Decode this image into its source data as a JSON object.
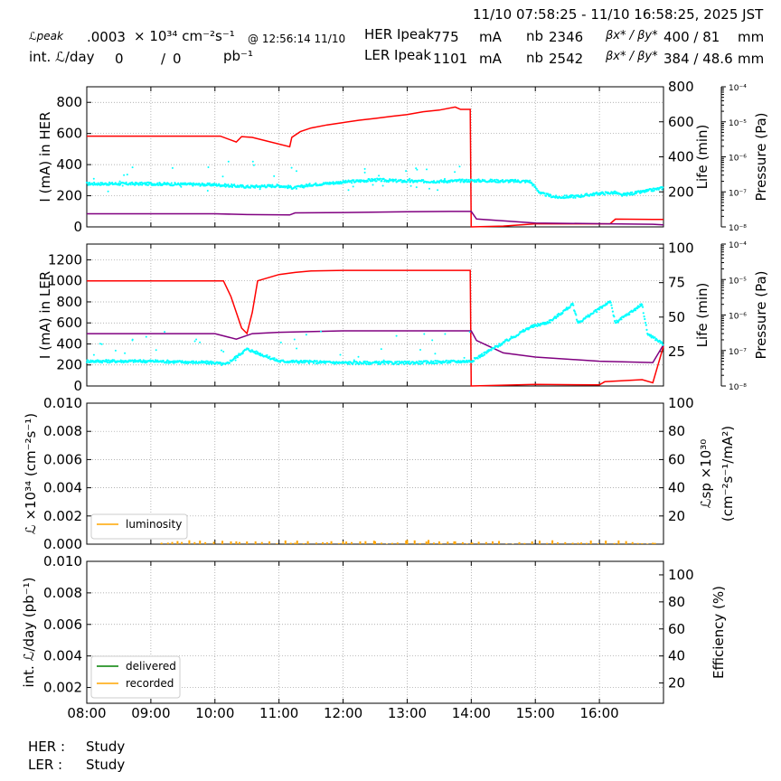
{
  "header": {
    "time_range": "11/10 07:58:25 - 11/10 16:58:25, 2025 JST",
    "lum_peak_label": "ℒpeak",
    "lum_peak_value": ".0003",
    "lum_peak_unit": "× 10³⁴ cm⁻²s⁻¹",
    "lum_peak_time": "@ 12:56:14 11/10",
    "int_lum_label": "int. ℒ/day",
    "int_lum_delivered": "0",
    "int_lum_sep": "/",
    "int_lum_recorded": "0",
    "int_lum_unit": "pb⁻¹",
    "her_peak_label": "HER Ipeak",
    "her_peak_value": "775",
    "her_peak_unit": "mA",
    "her_nb_label": "nb",
    "her_nb_value": "2346",
    "her_beta_label": "βx* / βy*",
    "her_beta_value": "400  / 81",
    "her_beta_unit": "mm",
    "ler_peak_label": "LER Ipeak",
    "ler_peak_value": "1101",
    "ler_peak_unit": "mA",
    "ler_nb_label": "nb",
    "ler_nb_value": "2542",
    "ler_beta_label": "βx* / βy*",
    "ler_beta_value": "384  / 48.6",
    "ler_beta_unit": "mm"
  },
  "footer": {
    "her_label": "HER :",
    "her_mode": "Study",
    "ler_label": "LER :",
    "ler_mode": "Study"
  },
  "colors": {
    "current": "#ff0000",
    "life": "#800080",
    "pressure": "#00ffff",
    "luminosity": "#ffa500",
    "delivered": "#008000",
    "recorded": "#ffa500",
    "grid": "#999999"
  },
  "chart_data": [
    {
      "type": "line",
      "panel": "HER",
      "ylabel": "I (mA) in HER",
      "ylim": [
        0,
        900
      ],
      "yticks": [
        0,
        200,
        400,
        600,
        800
      ],
      "y2label": "Life (min)",
      "y2lim": [
        0,
        800
      ],
      "y2ticks": [
        200,
        400,
        600,
        800
      ],
      "y3label": "Pressure (Pa)",
      "y3_log": true,
      "y3ticks": [
        "10⁻⁸",
        "10⁻⁷",
        "10⁻⁶",
        "10⁻⁵",
        "10⁻⁴"
      ],
      "xlim": [
        "08:00",
        "17:00"
      ],
      "grid": true,
      "series": [
        {
          "role": "current",
          "x": [
            "08:00",
            "10:05",
            "10:20",
            "10:25",
            "10:35",
            "11:10",
            "11:12",
            "11:20",
            "11:30",
            "11:45",
            "12:00",
            "12:15",
            "12:30",
            "12:45",
            "13:00",
            "13:15",
            "13:30",
            "13:45",
            "13:50",
            "13:59",
            "14:00",
            "14:30",
            "15:00",
            "15:30",
            "16:00",
            "16:10",
            "16:15",
            "16:50",
            "17:00"
          ],
          "values": [
            583,
            583,
            545,
            580,
            575,
            515,
            575,
            612,
            635,
            655,
            670,
            685,
            697,
            710,
            722,
            740,
            750,
            770,
            755,
            755,
            0,
            5,
            20,
            20,
            20,
            20,
            50,
            48,
            48
          ]
        },
        {
          "role": "life",
          "x": [
            "08:00",
            "10:00",
            "10:30",
            "11:10",
            "11:15",
            "12:00",
            "13:00",
            "13:40",
            "14:00",
            "14:05",
            "15:00",
            "16:00",
            "16:50",
            "17:00"
          ],
          "values": [
            75,
            75,
            70,
            68,
            80,
            82,
            86,
            88,
            88,
            45,
            22,
            18,
            15,
            12
          ]
        },
        {
          "role": "pressure",
          "x": [
            "08:00",
            "09:00",
            "10:00",
            "10:30",
            "11:00",
            "11:15",
            "11:30",
            "12:00",
            "12:30",
            "13:00",
            "13:30",
            "14:00",
            "14:55",
            "15:05",
            "15:20",
            "15:40",
            "16:00",
            "16:15",
            "16:20",
            "16:40",
            "17:00"
          ],
          "values": [
            1.7e-07,
            1.7e-07,
            1.6e-07,
            1.4e-07,
            1.5e-07,
            1.3e-07,
            1.6e-07,
            1.9e-07,
            2.2e-07,
            2e-07,
            2e-07,
            2.1e-07,
            2e-07,
            9e-08,
            7e-08,
            7.5e-08,
            9e-08,
            9.5e-08,
            8e-08,
            1e-07,
            1.3e-07
          ]
        }
      ]
    },
    {
      "type": "line",
      "panel": "LER",
      "ylabel": "I (mA) in LER",
      "ylim": [
        0,
        1350
      ],
      "yticks": [
        0,
        200,
        400,
        600,
        800,
        1000,
        1200
      ],
      "y2label": "Life (min)",
      "y2lim": [
        0,
        103
      ],
      "y2ticks": [
        25,
        50,
        75,
        100
      ],
      "y3label": "Pressure (Pa)",
      "y3_log": true,
      "y3ticks": [
        "10⁻⁸",
        "10⁻⁷",
        "10⁻⁶",
        "10⁻⁵",
        "10⁻⁴"
      ],
      "xlim": [
        "08:00",
        "17:00"
      ],
      "grid": true,
      "series": [
        {
          "role": "current",
          "x": [
            "08:00",
            "10:08",
            "10:15",
            "10:25",
            "10:30",
            "10:35",
            "10:40",
            "11:00",
            "11:15",
            "11:30",
            "12:00",
            "13:00",
            "13:59",
            "14:00",
            "15:00",
            "16:00",
            "16:05",
            "16:40",
            "16:50",
            "17:00"
          ],
          "values": [
            1000,
            1000,
            850,
            550,
            500,
            700,
            1000,
            1060,
            1080,
            1095,
            1100,
            1100,
            1100,
            0,
            15,
            10,
            40,
            60,
            30,
            380
          ]
        },
        {
          "role": "life",
          "x": [
            "08:00",
            "10:00",
            "10:20",
            "10:35",
            "11:00",
            "12:00",
            "13:00",
            "14:00",
            "14:05",
            "14:30",
            "15:00",
            "16:00",
            "16:50",
            "17:00"
          ],
          "values": [
            38,
            38,
            34,
            38,
            39,
            40,
            40,
            40,
            33,
            24,
            21,
            18,
            17,
            30
          ]
        },
        {
          "role": "pressure",
          "x": [
            "08:00",
            "09:00",
            "10:00",
            "10:10",
            "10:30",
            "11:00",
            "12:00",
            "13:00",
            "14:00",
            "14:55",
            "15:00",
            "15:10",
            "15:15",
            "15:35",
            "15:40",
            "16:00",
            "16:10",
            "16:15",
            "16:40",
            "16:45",
            "17:00"
          ],
          "values": [
            5e-08,
            5e-08,
            4.5e-08,
            4e-08,
            1.1e-07,
            5e-08,
            4.5e-08,
            4.5e-08,
            5e-08,
            4.5e-07,
            5e-07,
            6e-07,
            7e-07,
            2e-06,
            6e-07,
            1.5e-06,
            2.5e-06,
            6e-07,
            2e-06,
            3e-07,
            1.5e-07
          ]
        }
      ]
    },
    {
      "type": "line",
      "panel": "Luminosity",
      "ylabel": "ℒ ×10³⁴ (cm⁻²s⁻¹)",
      "ylim": [
        0,
        0.01
      ],
      "yticks": [
        "0.000",
        "0.002",
        "0.004",
        "0.006",
        "0.008",
        "0.010"
      ],
      "y2label": "ℒsp ×10³⁰ (cm⁻²s⁻¹/mA²)",
      "y2lim": [
        0,
        100
      ],
      "y2ticks": [
        20,
        40,
        60,
        80,
        100
      ],
      "xlim": [
        "08:00",
        "17:00"
      ],
      "grid": true,
      "legend": {
        "position": "lower-left",
        "entries": [
          "luminosity"
        ]
      },
      "series": [
        {
          "name": "luminosity",
          "x": [
            "09:10",
            "10:15",
            "10:20",
            "11:15",
            "12:00",
            "12:30",
            "13:00",
            "13:20",
            "13:30",
            "13:45",
            "14:00",
            "15:40",
            "16:50"
          ],
          "values": [
            0.0001,
            0.0002,
            0.0002,
            0.0001,
            0.0002,
            0.0002,
            0.0003,
            0.0003,
            0.0002,
            0.0002,
            0.0001,
            0.0001,
            0.0001
          ]
        }
      ]
    },
    {
      "type": "line",
      "panel": "Integrated luminosity",
      "ylabel": "int. ℒ/day (pb⁻¹)",
      "ylim": [
        0.001,
        0.01
      ],
      "yticks": [
        "0.002",
        "0.004",
        "0.006",
        "0.008",
        "0.010"
      ],
      "y2label": "Efficiency (%)",
      "y2lim": [
        5,
        110
      ],
      "y2ticks": [
        20,
        40,
        60,
        80,
        100
      ],
      "xlim": [
        "08:00",
        "17:00"
      ],
      "xticks": [
        "08:00",
        "09:00",
        "10:00",
        "11:00",
        "12:00",
        "13:00",
        "14:00",
        "15:00",
        "16:00"
      ],
      "grid": true,
      "legend": {
        "position": "lower-left",
        "entries": [
          "delivered",
          "recorded"
        ]
      },
      "series": [
        {
          "name": "delivered",
          "x": [],
          "values": []
        },
        {
          "name": "recorded",
          "x": [],
          "values": []
        }
      ]
    }
  ]
}
